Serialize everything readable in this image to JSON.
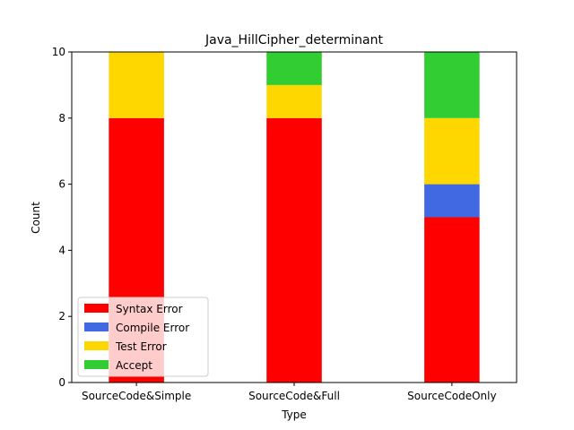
{
  "chart_data": {
    "type": "bar",
    "stacked": true,
    "title": "Java_HillCipher_determinant",
    "xlabel": "Type",
    "ylabel": "Count",
    "categories": [
      "SourceCode&Simple",
      "SourceCode&Full",
      "SourceCodeOnly"
    ],
    "ylim": [
      0,
      10
    ],
    "yticks": [
      0,
      2,
      4,
      6,
      8,
      10
    ],
    "series": [
      {
        "name": "Syntax Error",
        "values": [
          8,
          8,
          5
        ],
        "color": "#ff0000"
      },
      {
        "name": "Compile Error",
        "values": [
          0,
          0,
          1
        ],
        "color": "#4169e1"
      },
      {
        "name": "Test Error",
        "values": [
          2,
          1,
          2
        ],
        "color": "#ffd700"
      },
      {
        "name": "Accept",
        "values": [
          0,
          1,
          2
        ],
        "color": "#32cd32"
      }
    ],
    "legend_position": "lower-left",
    "grid": false
  }
}
